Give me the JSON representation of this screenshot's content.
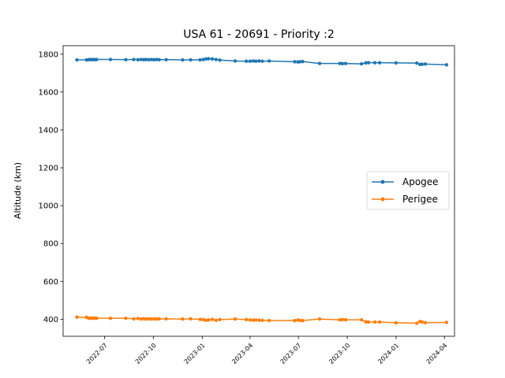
{
  "chart_data": {
    "type": "line",
    "title": "USA 61 - 20691 - Priority :2",
    "xlabel": "",
    "ylabel": "Altitude (km)",
    "xlim": [
      "2022-04-14",
      "2024-04-20"
    ],
    "ylim": [
      310,
      1845
    ],
    "yticks": [
      400,
      600,
      800,
      1000,
      1200,
      1400,
      1600,
      1800
    ],
    "xticks": [
      "2022-07-01",
      "2022-10-01",
      "2023-01-01",
      "2023-04-01",
      "2023-07-01",
      "2023-10-01",
      "2024-01-01",
      "2024-04-01"
    ],
    "xtick_labels": [
      "2022-07",
      "2022-10",
      "2023-01",
      "2023-04",
      "2023-07",
      "2023-10",
      "2024-01",
      "2024-04"
    ],
    "grid": false,
    "legend_position": "center-right",
    "series": [
      {
        "name": "Apogee",
        "color": "#1f77b4",
        "points": [
          [
            "2022-05-10",
            1770
          ],
          [
            "2022-05-28",
            1770
          ],
          [
            "2022-06-01",
            1771
          ],
          [
            "2022-06-04",
            1772
          ],
          [
            "2022-06-07",
            1771
          ],
          [
            "2022-06-10",
            1772
          ],
          [
            "2022-06-13",
            1771
          ],
          [
            "2022-06-16",
            1772
          ],
          [
            "2022-07-12",
            1772
          ],
          [
            "2022-08-10",
            1771
          ],
          [
            "2022-08-25",
            1772
          ],
          [
            "2022-09-02",
            1771
          ],
          [
            "2022-09-08",
            1772
          ],
          [
            "2022-09-13",
            1771
          ],
          [
            "2022-09-17",
            1772
          ],
          [
            "2022-09-22",
            1771
          ],
          [
            "2022-09-27",
            1772
          ],
          [
            "2022-10-02",
            1771
          ],
          [
            "2022-10-07",
            1772
          ],
          [
            "2022-10-12",
            1771
          ],
          [
            "2022-10-25",
            1771
          ],
          [
            "2022-11-25",
            1770
          ],
          [
            "2022-12-10",
            1770
          ],
          [
            "2022-12-28",
            1770
          ],
          [
            "2023-01-03",
            1772
          ],
          [
            "2023-01-08",
            1775
          ],
          [
            "2023-01-13",
            1776
          ],
          [
            "2023-01-20",
            1775
          ],
          [
            "2023-01-27",
            1772
          ],
          [
            "2023-02-03",
            1769
          ],
          [
            "2023-03-04",
            1764
          ],
          [
            "2023-03-25",
            1763
          ],
          [
            "2023-04-01",
            1763
          ],
          [
            "2023-04-07",
            1764
          ],
          [
            "2023-04-12",
            1763
          ],
          [
            "2023-04-18",
            1764
          ],
          [
            "2023-04-24",
            1763
          ],
          [
            "2023-05-07",
            1764
          ],
          [
            "2023-06-24",
            1760
          ],
          [
            "2023-06-30",
            1759
          ],
          [
            "2023-07-04",
            1760
          ],
          [
            "2023-07-09",
            1761
          ],
          [
            "2023-08-10",
            1751
          ],
          [
            "2023-09-17",
            1751
          ],
          [
            "2023-09-22",
            1750
          ],
          [
            "2023-09-28",
            1751
          ],
          [
            "2023-10-28",
            1749
          ],
          [
            "2023-11-05",
            1754
          ],
          [
            "2023-11-10",
            1755
          ],
          [
            "2023-11-22",
            1755
          ],
          [
            "2023-12-01",
            1755
          ],
          [
            "2024-01-01",
            1754
          ],
          [
            "2024-02-09",
            1753
          ],
          [
            "2024-02-15",
            1746
          ],
          [
            "2024-02-19",
            1747
          ],
          [
            "2024-02-25",
            1748
          ],
          [
            "2024-04-05",
            1744
          ]
        ]
      },
      {
        "name": "Perigee",
        "color": "#ff7f0e",
        "points": [
          [
            "2022-05-10",
            411
          ],
          [
            "2022-05-28",
            410
          ],
          [
            "2022-06-01",
            406
          ],
          [
            "2022-06-04",
            405
          ],
          [
            "2022-06-07",
            407
          ],
          [
            "2022-06-10",
            405
          ],
          [
            "2022-06-13",
            406
          ],
          [
            "2022-06-16",
            405
          ],
          [
            "2022-07-12",
            405
          ],
          [
            "2022-08-10",
            405
          ],
          [
            "2022-08-25",
            402
          ],
          [
            "2022-09-02",
            404
          ],
          [
            "2022-09-08",
            401
          ],
          [
            "2022-09-13",
            403
          ],
          [
            "2022-09-17",
            401
          ],
          [
            "2022-09-22",
            402
          ],
          [
            "2022-09-27",
            401
          ],
          [
            "2022-10-02",
            402
          ],
          [
            "2022-10-07",
            401
          ],
          [
            "2022-10-12",
            402
          ],
          [
            "2022-10-25",
            402
          ],
          [
            "2022-11-25",
            401
          ],
          [
            "2022-12-10",
            402
          ],
          [
            "2022-12-28",
            399
          ],
          [
            "2023-01-03",
            398
          ],
          [
            "2023-01-08",
            394
          ],
          [
            "2023-01-13",
            396
          ],
          [
            "2023-01-20",
            399
          ],
          [
            "2023-01-27",
            394
          ],
          [
            "2023-02-03",
            398
          ],
          [
            "2023-03-04",
            401
          ],
          [
            "2023-03-25",
            398
          ],
          [
            "2023-04-01",
            396
          ],
          [
            "2023-04-07",
            395
          ],
          [
            "2023-04-12",
            396
          ],
          [
            "2023-04-18",
            395
          ],
          [
            "2023-04-24",
            394
          ],
          [
            "2023-05-07",
            393
          ],
          [
            "2023-06-24",
            393
          ],
          [
            "2023-06-30",
            396
          ],
          [
            "2023-07-04",
            394
          ],
          [
            "2023-07-09",
            393
          ],
          [
            "2023-08-10",
            401
          ],
          [
            "2023-09-17",
            397
          ],
          [
            "2023-09-22",
            398
          ],
          [
            "2023-09-28",
            397
          ],
          [
            "2023-10-28",
            397
          ],
          [
            "2023-11-05",
            386
          ],
          [
            "2023-11-10",
            385
          ],
          [
            "2023-11-22",
            385
          ],
          [
            "2023-12-01",
            385
          ],
          [
            "2024-01-01",
            381
          ],
          [
            "2024-02-09",
            379
          ],
          [
            "2024-02-15",
            388
          ],
          [
            "2024-02-19",
            385
          ],
          [
            "2024-02-25",
            382
          ],
          [
            "2024-04-05",
            383
          ]
        ]
      }
    ]
  }
}
